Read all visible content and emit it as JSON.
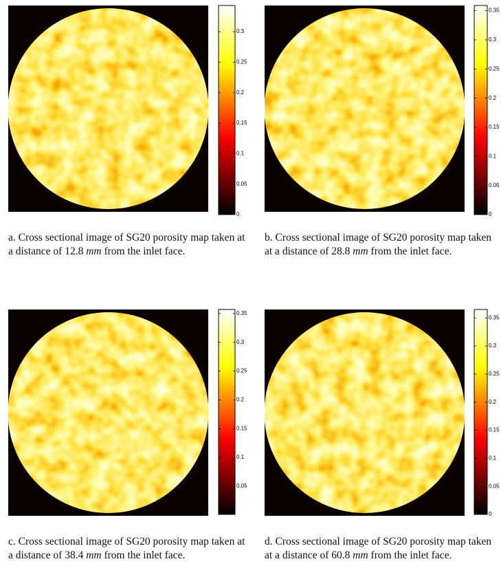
{
  "panels": [
    {
      "colorbar": {
        "lim": [
          0,
          0.343
        ],
        "ticks": [
          0,
          0.05,
          0.1,
          0.15,
          0.2,
          0.25,
          0.3
        ]
      },
      "caption": {
        "text": "a. Cross sectional image of SG20 porosity map taken at a distance of",
        "distance": 12.8,
        "unit": "mm",
        "end": "from the inlet face."
      }
    },
    {
      "colorbar": {
        "lim": [
          0,
          0.359
        ],
        "ticks": [
          0,
          0.05,
          0.1,
          0.15,
          0.2,
          0.25,
          0.3,
          0.35
        ]
      },
      "caption": {
        "text": "b. Cross sectional image of SG20 porosity map taken at a distance of",
        "distance": 28.8,
        "unit": "mm",
        "end": "from the inlet face."
      }
    },
    {
      "colorbar": {
        "lim": [
          0.001,
          0.357
        ],
        "ticks": [
          0.05,
          0.1,
          0.15,
          0.2,
          0.25,
          0.3,
          0.35
        ]
      },
      "caption": {
        "text": "c. Cross sectional image of SG20 porosity map taken at a distance of",
        "distance": 38.4,
        "unit": "mm",
        "end": "from the inlet face."
      }
    },
    {
      "colorbar": {
        "lim": [
          0,
          0.365
        ],
        "ticks": [
          0,
          0.05,
          0.1,
          0.15,
          0.2,
          0.25,
          0.3,
          0.35
        ]
      },
      "caption": {
        "text": "d. Cross sectional image of SG20 porosity map taken at a distance of",
        "distance": 60.8,
        "unit": "mm",
        "end": "from the inlet face."
      }
    }
  ]
}
